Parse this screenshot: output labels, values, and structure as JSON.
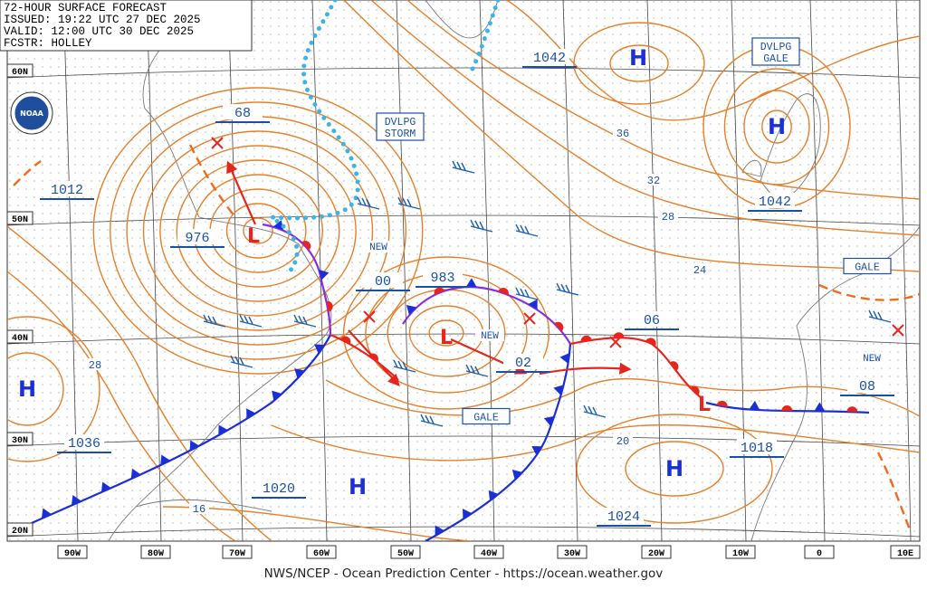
{
  "header": {
    "lines": [
      "72-HOUR SURFACE FORECAST",
      "ISSUED: 19:22 UTC 27 DEC 2025",
      "VALID: 12:00 UTC 30 DEC 2025",
      "FCSTR: HOLLEY"
    ]
  },
  "logo_text": "NOAA",
  "footer": "NWS/NCEP - Ocean Prediction Center - https://ocean.weather.gov",
  "latitude_labels": [
    "60N",
    "50N",
    "40N",
    "30N",
    "20N"
  ],
  "longitude_labels": [
    "90W",
    "80W",
    "70W",
    "60W",
    "50W",
    "40W",
    "30W",
    "20W",
    "10W",
    "0",
    "10E"
  ],
  "pressure_labels": [
    "1042",
    "68",
    "1012",
    "976",
    "00",
    "983",
    "02",
    "06",
    "08",
    "1042",
    "1036",
    "1020",
    "1018",
    "1024"
  ],
  "isobar_labels": [
    "36",
    "32",
    "28",
    "24",
    "20",
    "28",
    "16"
  ],
  "highs": [
    "H",
    "H",
    "H",
    "H",
    "H"
  ],
  "lows": [
    "L",
    "L",
    "L"
  ],
  "new_labels": [
    "NEW",
    "NEW",
    "NEW"
  ],
  "warnings": [
    [
      "DVLPG",
      "STORM"
    ],
    [
      "DVLPG",
      "GALE"
    ],
    [
      "GALE"
    ],
    [
      "GALE"
    ]
  ]
}
